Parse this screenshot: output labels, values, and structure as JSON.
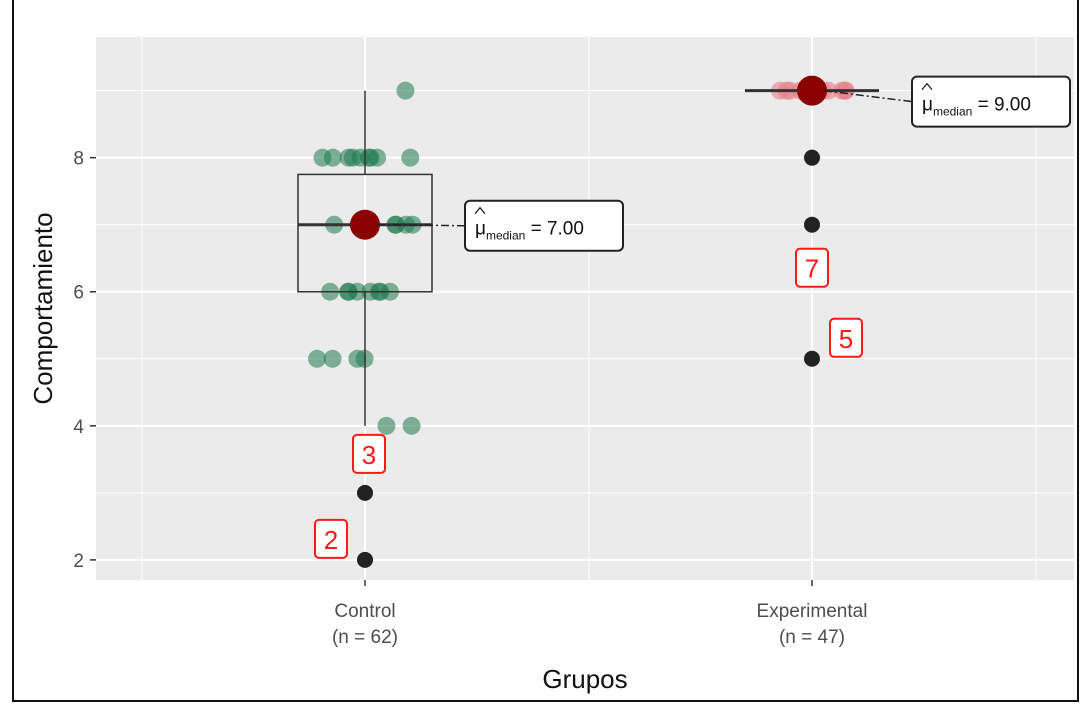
{
  "chart_data": {
    "type": "boxplot",
    "xlabel": "Grupos",
    "ylabel": "Comportamiento",
    "ylim": [
      1.7,
      9.8
    ],
    "y_ticks": [
      2,
      4,
      6,
      8
    ],
    "grid": true,
    "groups": [
      {
        "category": "Control",
        "n_label": "(n = 62)",
        "color": "#1f7a4f",
        "box": {
          "q1": 6,
          "median": 7,
          "q3": 7.75,
          "whisker_low": 4,
          "whisker_high": 9
        },
        "median_marker": 7.0,
        "median_text": "7.00",
        "points": [
          9,
          8,
          8,
          8,
          8,
          8,
          8,
          8,
          8,
          8,
          7,
          7,
          7,
          7,
          7,
          7,
          7,
          6,
          6,
          6,
          6,
          6,
          6,
          6,
          6,
          5,
          5,
          5,
          5,
          4,
          4
        ],
        "outliers": [
          {
            "y": 3,
            "label": "3"
          },
          {
            "y": 2,
            "label": "2"
          }
        ]
      },
      {
        "category": "Experimental",
        "n_label": "(n = 47)",
        "color": "#e8808a",
        "box": {
          "q1": 9,
          "median": 9,
          "q3": 9,
          "whisker_low": 9,
          "whisker_high": 9
        },
        "median_marker": 9.0,
        "median_text": "9.00",
        "points": [
          9,
          9,
          9,
          9,
          9,
          9,
          9,
          9,
          9,
          9,
          9
        ],
        "outliers": [
          {
            "y": 8,
            "label": ""
          },
          {
            "y": 7,
            "label": "7"
          },
          {
            "y": 5,
            "label": "5"
          }
        ]
      }
    ],
    "stat_symbol": "μ",
    "stat_subscript": "median",
    "colors": {
      "panel": "#ebebeb",
      "grid": "#ffffff",
      "median_marker": "#8b0000",
      "outlier": "#222222",
      "label": "#ff1a1a"
    }
  }
}
